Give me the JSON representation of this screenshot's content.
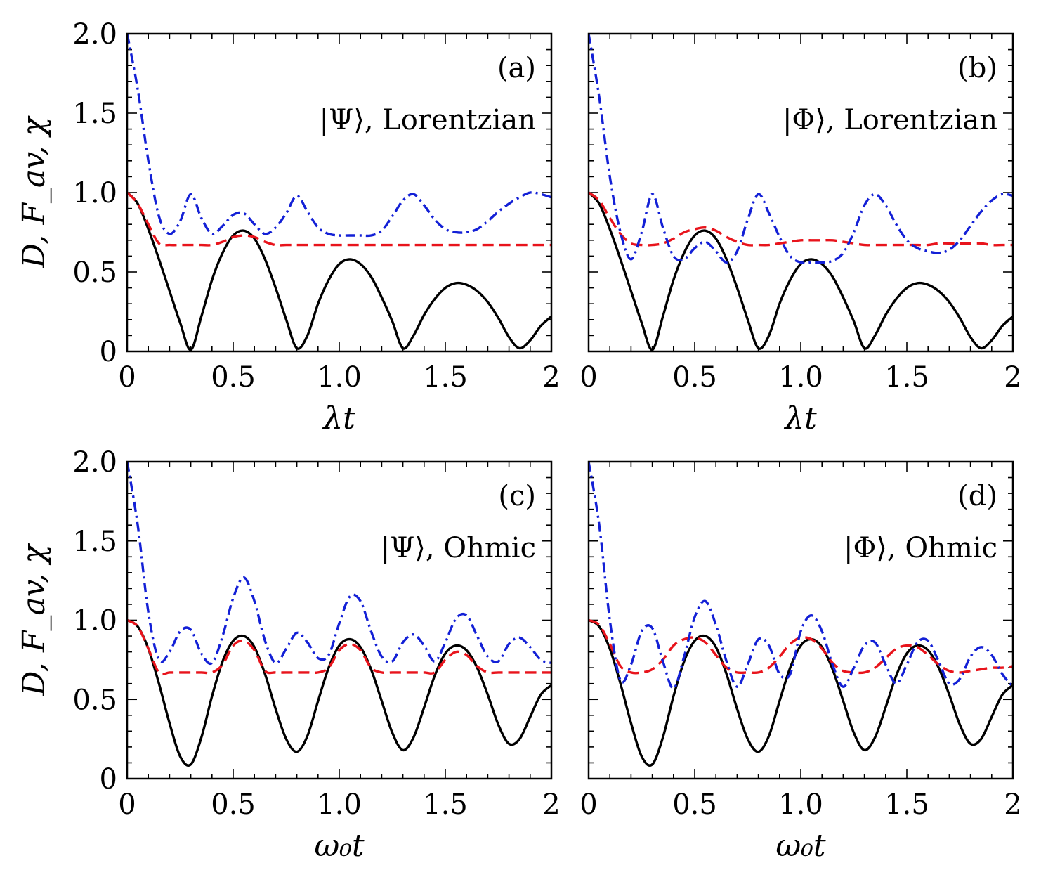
{
  "figure": {
    "ylabel": "D, F_av, χ",
    "series_styles": [
      {
        "name": "D",
        "color": "#000000",
        "dash": "solid"
      },
      {
        "name": "F_av",
        "color": "#e8141c",
        "dash": "dashed"
      },
      {
        "name": "χ",
        "color": "#1320d6",
        "dash": "dashdot"
      }
    ]
  },
  "chart_data": [
    {
      "type": "line",
      "panel": "(a)",
      "state": "|Ψ⟩, Lorentzian",
      "xlabel": "λt",
      "xlim": [
        0,
        2
      ],
      "ylim": [
        0,
        2
      ],
      "xticks": [
        "0",
        "0.5",
        "1.0",
        "1.5",
        "2"
      ],
      "yticks": [
        "0",
        "0.5",
        "1.0",
        "1.5",
        "2.0"
      ],
      "x": [
        0,
        0.05,
        0.1,
        0.15,
        0.2,
        0.25,
        0.3,
        0.35,
        0.4,
        0.45,
        0.5,
        0.55,
        0.6,
        0.65,
        0.7,
        0.75,
        0.8,
        0.85,
        0.9,
        0.95,
        1.0,
        1.05,
        1.1,
        1.15,
        1.2,
        1.25,
        1.3,
        1.35,
        1.4,
        1.45,
        1.5,
        1.55,
        1.6,
        1.65,
        1.7,
        1.75,
        1.8,
        1.85,
        1.9,
        1.95,
        2.0
      ],
      "series": [
        {
          "name": "D",
          "values": [
            1.0,
            0.93,
            0.77,
            0.58,
            0.38,
            0.18,
            0.01,
            0.22,
            0.45,
            0.62,
            0.73,
            0.76,
            0.71,
            0.58,
            0.4,
            0.2,
            0.02,
            0.1,
            0.3,
            0.45,
            0.55,
            0.58,
            0.55,
            0.47,
            0.34,
            0.19,
            0.02,
            0.1,
            0.23,
            0.33,
            0.4,
            0.43,
            0.42,
            0.38,
            0.31,
            0.21,
            0.09,
            0.02,
            0.07,
            0.16,
            0.22
          ]
        },
        {
          "name": "F_av",
          "values": [
            1.0,
            0.93,
            0.8,
            0.68,
            0.67,
            0.67,
            0.67,
            0.67,
            0.67,
            0.69,
            0.72,
            0.73,
            0.72,
            0.69,
            0.67,
            0.67,
            0.67,
            0.67,
            0.67,
            0.67,
            0.67,
            0.67,
            0.67,
            0.67,
            0.67,
            0.67,
            0.67,
            0.67,
            0.67,
            0.67,
            0.67,
            0.67,
            0.67,
            0.67,
            0.67,
            0.67,
            0.67,
            0.67,
            0.67,
            0.67,
            0.67
          ]
        },
        {
          "name": "χ",
          "values": [
            2.0,
            1.65,
            1.2,
            0.85,
            0.74,
            0.82,
            0.99,
            0.84,
            0.74,
            0.79,
            0.86,
            0.87,
            0.8,
            0.74,
            0.78,
            0.87,
            0.98,
            0.88,
            0.78,
            0.74,
            0.73,
            0.73,
            0.73,
            0.73,
            0.76,
            0.85,
            0.95,
            0.99,
            0.92,
            0.83,
            0.77,
            0.75,
            0.75,
            0.77,
            0.82,
            0.88,
            0.93,
            0.97,
            1.0,
            0.99,
            0.97
          ]
        }
      ]
    },
    {
      "type": "line",
      "panel": "(b)",
      "state": "|Φ⟩, Lorentzian",
      "xlabel": "λt",
      "xlim": [
        0,
        2
      ],
      "ylim": [
        0,
        2
      ],
      "xticks": [
        "0",
        "0.5",
        "1.0",
        "1.5",
        "2"
      ],
      "yticks": [],
      "x": [
        0,
        0.05,
        0.1,
        0.15,
        0.2,
        0.25,
        0.3,
        0.35,
        0.4,
        0.45,
        0.5,
        0.55,
        0.6,
        0.65,
        0.7,
        0.75,
        0.8,
        0.85,
        0.9,
        0.95,
        1.0,
        1.05,
        1.1,
        1.15,
        1.2,
        1.25,
        1.3,
        1.35,
        1.4,
        1.45,
        1.5,
        1.55,
        1.6,
        1.65,
        1.7,
        1.75,
        1.8,
        1.85,
        1.9,
        1.95,
        2.0
      ],
      "series": [
        {
          "name": "D",
          "values": [
            1.0,
            0.93,
            0.77,
            0.58,
            0.38,
            0.18,
            0.01,
            0.22,
            0.45,
            0.62,
            0.73,
            0.76,
            0.71,
            0.58,
            0.4,
            0.2,
            0.02,
            0.1,
            0.3,
            0.45,
            0.55,
            0.58,
            0.55,
            0.47,
            0.34,
            0.19,
            0.02,
            0.1,
            0.23,
            0.33,
            0.4,
            0.43,
            0.42,
            0.38,
            0.31,
            0.21,
            0.09,
            0.02,
            0.07,
            0.16,
            0.22
          ]
        },
        {
          "name": "F_av",
          "values": [
            1.0,
            0.95,
            0.84,
            0.74,
            0.68,
            0.67,
            0.67,
            0.68,
            0.71,
            0.75,
            0.77,
            0.78,
            0.76,
            0.72,
            0.69,
            0.67,
            0.67,
            0.67,
            0.68,
            0.69,
            0.7,
            0.7,
            0.7,
            0.7,
            0.69,
            0.68,
            0.67,
            0.67,
            0.67,
            0.67,
            0.67,
            0.67,
            0.67,
            0.68,
            0.68,
            0.68,
            0.68,
            0.68,
            0.67,
            0.67,
            0.67
          ]
        },
        {
          "name": "χ",
          "values": [
            2.0,
            1.6,
            1.1,
            0.75,
            0.58,
            0.75,
            0.99,
            0.78,
            0.6,
            0.58,
            0.65,
            0.69,
            0.63,
            0.56,
            0.63,
            0.83,
            0.99,
            0.87,
            0.72,
            0.6,
            0.56,
            0.56,
            0.56,
            0.57,
            0.62,
            0.75,
            0.92,
            0.99,
            0.92,
            0.8,
            0.7,
            0.65,
            0.63,
            0.62,
            0.64,
            0.7,
            0.79,
            0.88,
            0.95,
            0.99,
            0.98
          ]
        }
      ]
    },
    {
      "type": "line",
      "panel": "(c)",
      "state": "|Ψ⟩, Ohmic",
      "xlabel": "ω₀t",
      "xlim": [
        0,
        2
      ],
      "ylim": [
        0,
        2
      ],
      "xticks": [
        "0",
        "0.5",
        "1.0",
        "1.5",
        "2"
      ],
      "yticks": [
        "0",
        "0.5",
        "1.0",
        "1.5",
        "2.0"
      ],
      "x": [
        0,
        0.05,
        0.1,
        0.15,
        0.2,
        0.25,
        0.3,
        0.35,
        0.4,
        0.45,
        0.5,
        0.55,
        0.6,
        0.65,
        0.7,
        0.75,
        0.8,
        0.85,
        0.9,
        0.95,
        1.0,
        1.05,
        1.1,
        1.15,
        1.2,
        1.25,
        1.3,
        1.35,
        1.4,
        1.45,
        1.5,
        1.55,
        1.6,
        1.65,
        1.7,
        1.75,
        1.8,
        1.85,
        1.9,
        1.95,
        2.0
      ],
      "series": [
        {
          "name": "D",
          "values": [
            1.0,
            0.96,
            0.82,
            0.6,
            0.35,
            0.14,
            0.09,
            0.26,
            0.52,
            0.74,
            0.87,
            0.9,
            0.83,
            0.66,
            0.44,
            0.25,
            0.17,
            0.27,
            0.49,
            0.7,
            0.84,
            0.88,
            0.83,
            0.69,
            0.49,
            0.29,
            0.18,
            0.26,
            0.45,
            0.65,
            0.79,
            0.84,
            0.81,
            0.7,
            0.53,
            0.34,
            0.22,
            0.25,
            0.39,
            0.53,
            0.59
          ]
        },
        {
          "name": "F_av",
          "values": [
            1.0,
            0.96,
            0.82,
            0.67,
            0.67,
            0.67,
            0.67,
            0.67,
            0.67,
            0.72,
            0.84,
            0.87,
            0.81,
            0.68,
            0.67,
            0.67,
            0.67,
            0.67,
            0.67,
            0.7,
            0.81,
            0.85,
            0.81,
            0.7,
            0.67,
            0.67,
            0.67,
            0.67,
            0.67,
            0.67,
            0.75,
            0.8,
            0.78,
            0.71,
            0.67,
            0.67,
            0.67,
            0.67,
            0.67,
            0.67,
            0.67
          ]
        },
        {
          "name": "χ",
          "values": [
            2.0,
            1.6,
            1.05,
            0.75,
            0.8,
            0.93,
            0.94,
            0.79,
            0.73,
            0.9,
            1.14,
            1.27,
            1.12,
            0.87,
            0.73,
            0.82,
            0.92,
            0.86,
            0.76,
            0.78,
            0.98,
            1.15,
            1.12,
            0.93,
            0.77,
            0.74,
            0.86,
            0.91,
            0.84,
            0.74,
            0.86,
            1.01,
            1.03,
            0.9,
            0.77,
            0.74,
            0.85,
            0.89,
            0.83,
            0.75,
            0.73
          ]
        }
      ]
    },
    {
      "type": "line",
      "panel": "(d)",
      "state": "|Φ⟩, Ohmic",
      "xlabel": "ω₀t",
      "xlim": [
        0,
        2
      ],
      "ylim": [
        0,
        2
      ],
      "xticks": [
        "0",
        "0.5",
        "1.0",
        "1.5",
        "2"
      ],
      "yticks": [],
      "x": [
        0,
        0.05,
        0.1,
        0.15,
        0.2,
        0.25,
        0.3,
        0.35,
        0.4,
        0.45,
        0.5,
        0.55,
        0.6,
        0.65,
        0.7,
        0.75,
        0.8,
        0.85,
        0.9,
        0.95,
        1.0,
        1.05,
        1.1,
        1.15,
        1.2,
        1.25,
        1.3,
        1.35,
        1.4,
        1.45,
        1.5,
        1.55,
        1.6,
        1.65,
        1.7,
        1.75,
        1.8,
        1.85,
        1.9,
        1.95,
        2.0
      ],
      "series": [
        {
          "name": "D",
          "values": [
            1.0,
            0.96,
            0.82,
            0.6,
            0.35,
            0.14,
            0.09,
            0.26,
            0.52,
            0.74,
            0.87,
            0.9,
            0.83,
            0.66,
            0.44,
            0.25,
            0.17,
            0.27,
            0.49,
            0.7,
            0.84,
            0.88,
            0.83,
            0.69,
            0.49,
            0.29,
            0.18,
            0.26,
            0.45,
            0.65,
            0.79,
            0.84,
            0.81,
            0.7,
            0.53,
            0.34,
            0.22,
            0.25,
            0.39,
            0.53,
            0.59
          ]
        },
        {
          "name": "F_av",
          "values": [
            1.0,
            0.97,
            0.85,
            0.71,
            0.67,
            0.67,
            0.69,
            0.75,
            0.84,
            0.88,
            0.89,
            0.86,
            0.78,
            0.7,
            0.67,
            0.67,
            0.67,
            0.7,
            0.77,
            0.85,
            0.89,
            0.88,
            0.82,
            0.73,
            0.68,
            0.67,
            0.67,
            0.7,
            0.76,
            0.82,
            0.84,
            0.83,
            0.78,
            0.72,
            0.68,
            0.67,
            0.68,
            0.69,
            0.7,
            0.7,
            0.71
          ]
        },
        {
          "name": "χ",
          "values": [
            2.0,
            1.6,
            1.0,
            0.62,
            0.72,
            0.93,
            0.95,
            0.74,
            0.57,
            0.77,
            1.02,
            1.12,
            0.97,
            0.74,
            0.58,
            0.72,
            0.88,
            0.84,
            0.66,
            0.66,
            0.93,
            1.03,
            0.93,
            0.72,
            0.58,
            0.7,
            0.84,
            0.86,
            0.72,
            0.6,
            0.72,
            0.86,
            0.87,
            0.74,
            0.6,
            0.63,
            0.77,
            0.83,
            0.78,
            0.66,
            0.58
          ]
        }
      ]
    }
  ]
}
